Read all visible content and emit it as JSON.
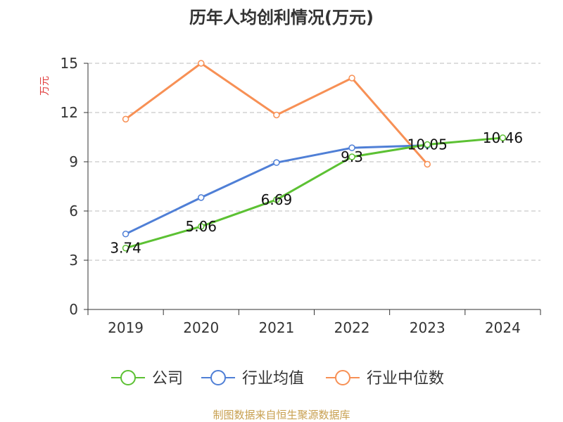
{
  "chart_data": {
    "type": "line",
    "title": "历年人均创利情况(万元)",
    "ylabel": "万元",
    "xlabel": "",
    "categories": [
      "2019",
      "2020",
      "2021",
      "2022",
      "2023",
      "2024"
    ],
    "ylim": [
      0,
      15
    ],
    "yticks": [
      0,
      3,
      6,
      9,
      12,
      15
    ],
    "grid": true,
    "legend_position": "bottom",
    "series": [
      {
        "name": "公司",
        "color": "#5cc133",
        "values": [
          3.74,
          5.06,
          6.69,
          9.3,
          10.05,
          10.46
        ],
        "labels": [
          "3.74",
          "5.06",
          "6.69",
          "9.3",
          "10.05",
          "10.46"
        ]
      },
      {
        "name": "行业均值",
        "color": "#4f7fd6",
        "values": [
          4.6,
          6.82,
          8.95,
          9.85,
          10.0,
          null
        ]
      },
      {
        "name": "行业中位数",
        "color": "#f79055",
        "values": [
          11.6,
          15.0,
          11.85,
          14.1,
          8.85,
          null
        ]
      }
    ],
    "source": "制图数据来自恒生聚源数据库"
  }
}
